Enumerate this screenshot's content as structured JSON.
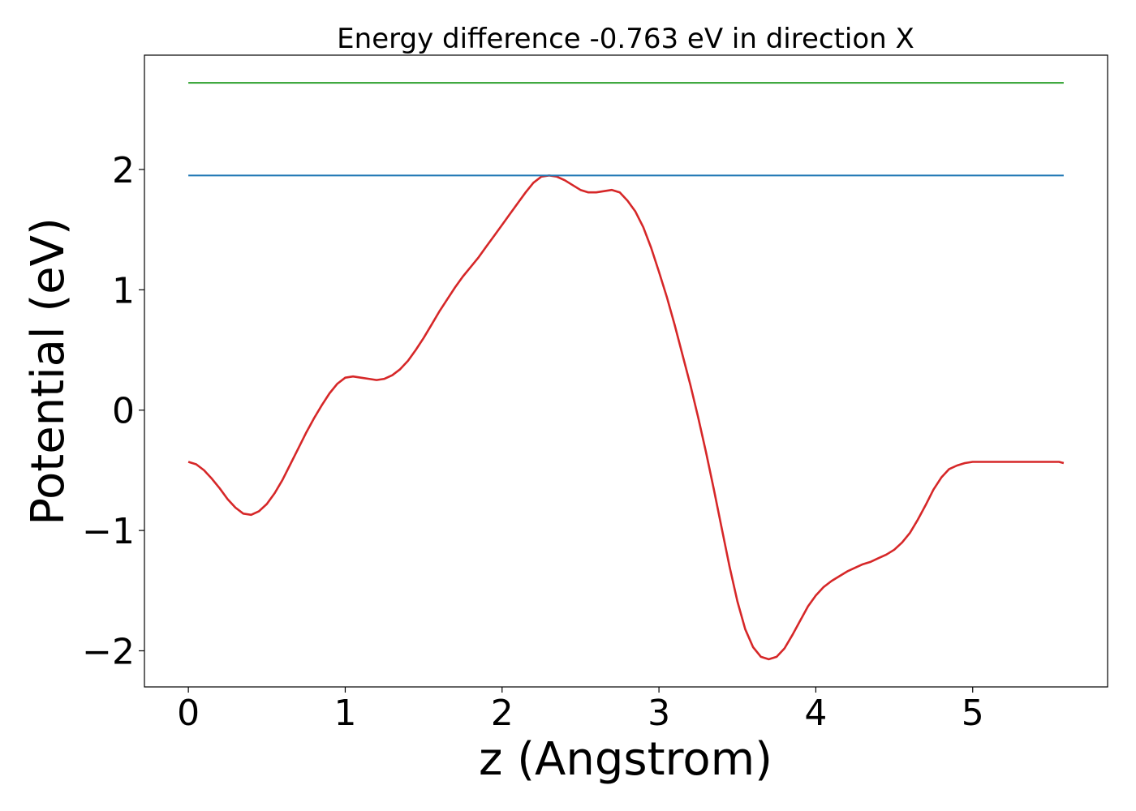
{
  "chart_data": {
    "type": "line",
    "title": "Energy difference -0.763 eV in direction X",
    "xlabel": "z (Angstrom)",
    "ylabel": "Potential (eV)",
    "xlim": [
      -0.28,
      5.86
    ],
    "ylim": [
      -2.3,
      2.95
    ],
    "xticks": [
      0,
      1,
      2,
      3,
      4,
      5
    ],
    "xtick_labels": [
      "0",
      "1",
      "2",
      "3",
      "4",
      "5"
    ],
    "yticks": [
      -2,
      -1,
      0,
      1,
      2
    ],
    "ytick_labels": [
      "−2",
      "−1",
      "0",
      "1",
      "2"
    ],
    "grid": false,
    "series": [
      {
        "color": "#d62728",
        "x": [
          0.0,
          0.05,
          0.1,
          0.15,
          0.2,
          0.25,
          0.3,
          0.35,
          0.4,
          0.45,
          0.5,
          0.55,
          0.6,
          0.65,
          0.7,
          0.75,
          0.8,
          0.85,
          0.9,
          0.95,
          1.0,
          1.05,
          1.1,
          1.15,
          1.2,
          1.25,
          1.3,
          1.35,
          1.4,
          1.45,
          1.5,
          1.55,
          1.6,
          1.65,
          1.7,
          1.75,
          1.8,
          1.85,
          1.9,
          1.95,
          2.0,
          2.05,
          2.1,
          2.15,
          2.2,
          2.25,
          2.3,
          2.35,
          2.4,
          2.45,
          2.5,
          2.55,
          2.6,
          2.65,
          2.7,
          2.75,
          2.8,
          2.85,
          2.9,
          2.95,
          3.0,
          3.05,
          3.1,
          3.15,
          3.2,
          3.25,
          3.3,
          3.35,
          3.4,
          3.45,
          3.5,
          3.55,
          3.6,
          3.65,
          3.7,
          3.75,
          3.8,
          3.85,
          3.9,
          3.95,
          4.0,
          4.05,
          4.1,
          4.15,
          4.2,
          4.25,
          4.3,
          4.35,
          4.4,
          4.45,
          4.5,
          4.55,
          4.6,
          4.65,
          4.7,
          4.75,
          4.8,
          4.85,
          4.9,
          4.95,
          5.0,
          5.05,
          5.1,
          5.15,
          5.2,
          5.25,
          5.3,
          5.35,
          5.4,
          5.45,
          5.5,
          5.55,
          5.58
        ],
        "y": [
          -0.43,
          -0.45,
          -0.5,
          -0.57,
          -0.65,
          -0.74,
          -0.81,
          -0.86,
          -0.87,
          -0.84,
          -0.78,
          -0.69,
          -0.58,
          -0.45,
          -0.32,
          -0.19,
          -0.07,
          0.04,
          0.14,
          0.22,
          0.27,
          0.28,
          0.27,
          0.26,
          0.25,
          0.26,
          0.29,
          0.34,
          0.41,
          0.5,
          0.6,
          0.71,
          0.82,
          0.92,
          1.02,
          1.11,
          1.19,
          1.27,
          1.36,
          1.45,
          1.54,
          1.63,
          1.72,
          1.81,
          1.89,
          1.94,
          1.95,
          1.94,
          1.91,
          1.87,
          1.83,
          1.81,
          1.81,
          1.82,
          1.83,
          1.81,
          1.74,
          1.65,
          1.52,
          1.35,
          1.15,
          0.94,
          0.71,
          0.46,
          0.21,
          -0.06,
          -0.35,
          -0.66,
          -0.98,
          -1.3,
          -1.59,
          -1.82,
          -1.97,
          -2.05,
          -2.07,
          -2.05,
          -1.98,
          -1.87,
          -1.75,
          -1.63,
          -1.54,
          -1.47,
          -1.42,
          -1.38,
          -1.34,
          -1.31,
          -1.28,
          -1.26,
          -1.23,
          -1.2,
          -1.16,
          -1.1,
          -1.02,
          -0.91,
          -0.79,
          -0.66,
          -0.56,
          -0.49,
          -0.46,
          -0.44,
          -0.43,
          -0.43,
          -0.43,
          -0.43,
          -0.43,
          -0.43,
          -0.43,
          -0.43,
          -0.43,
          -0.43,
          -0.43,
          -0.43,
          -0.44
        ]
      },
      {
        "color": "#1f77b4",
        "x": [
          0.0,
          5.58
        ],
        "y": [
          1.95,
          1.95
        ]
      },
      {
        "color": "#2ca02c",
        "x": [
          0.0,
          5.58
        ],
        "y": [
          2.72,
          2.72
        ]
      }
    ]
  }
}
